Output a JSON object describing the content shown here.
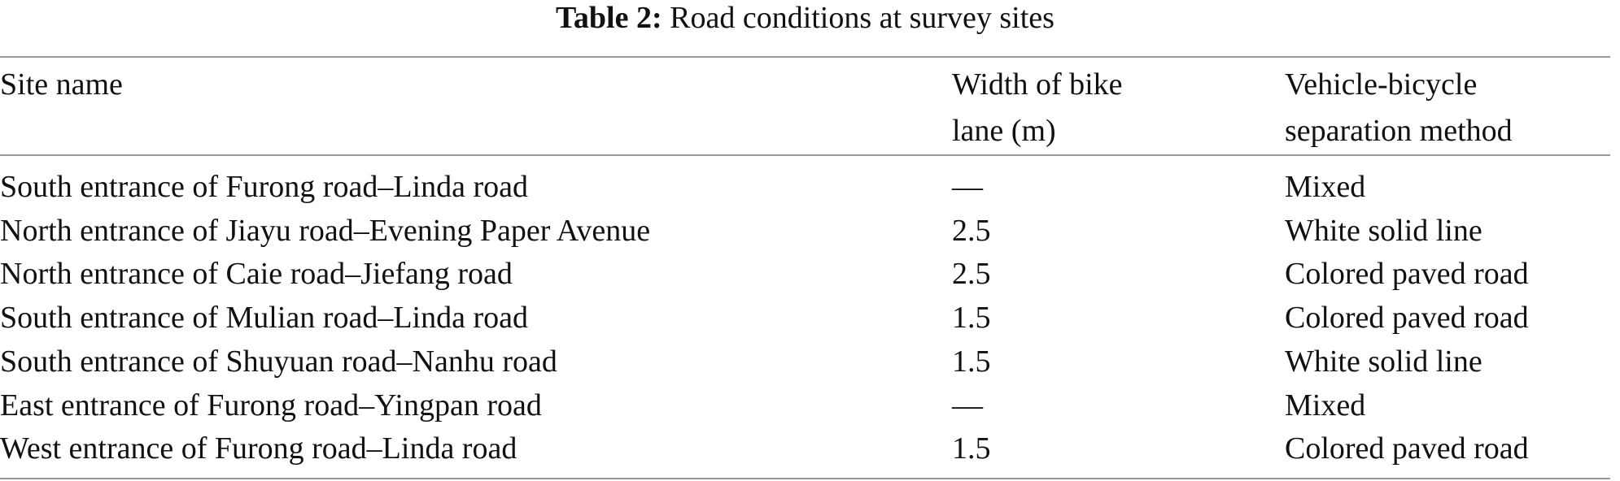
{
  "caption": {
    "label": "Table 2:",
    "text": "Road conditions at survey sites"
  },
  "table": {
    "header": [
      [
        "Site name"
      ],
      [
        "Width of bike",
        "lane (m)"
      ],
      [
        "Vehicle-bicycle",
        "separation method"
      ]
    ],
    "rows": [
      [
        "South entrance of Furong road–Linda road",
        "—",
        "Mixed"
      ],
      [
        "North entrance of Jiayu road–Evening Paper Avenue",
        "2.5",
        "White solid line"
      ],
      [
        "North entrance of Caie road–Jiefang road",
        "2.5",
        "Colored paved road"
      ],
      [
        "South entrance of Mulian road–Linda road",
        "1.5",
        "Colored paved road"
      ],
      [
        "South entrance of Shuyuan road–Nanhu road",
        "1.5",
        "White solid line"
      ],
      [
        "East entrance of Furong road–Yingpan road",
        "—",
        "Mixed"
      ],
      [
        "West entrance of Furong road–Linda road",
        "1.5",
        "Colored paved road"
      ]
    ]
  }
}
